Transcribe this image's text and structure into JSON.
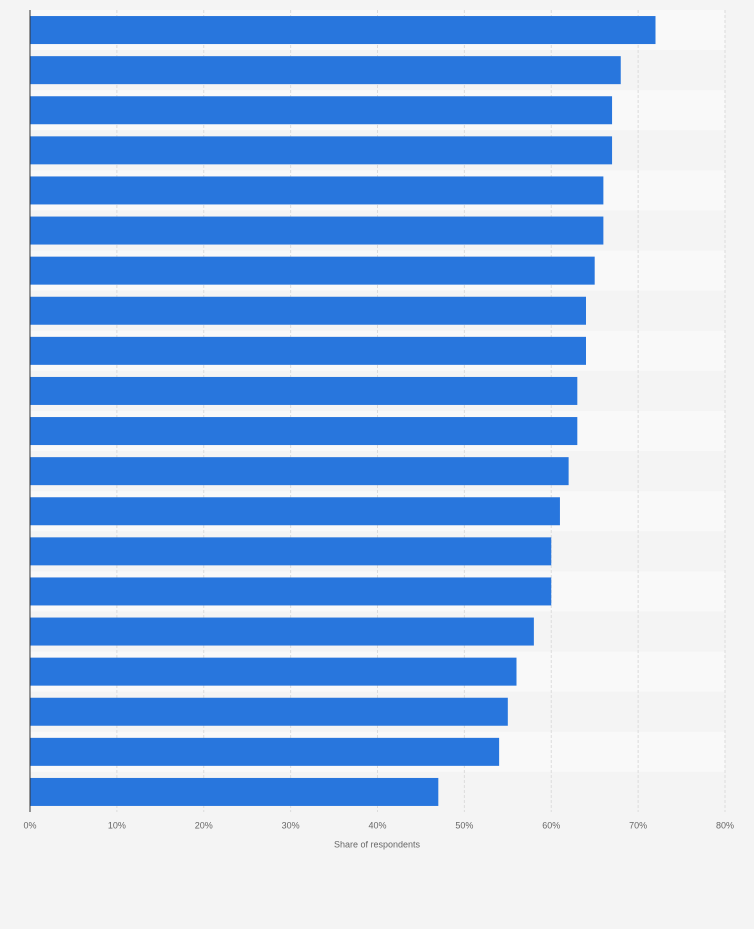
{
  "chart_data": {
    "type": "bar",
    "orientation": "horizontal",
    "x_label": "Share of respondents",
    "categories": [
      null,
      null,
      null,
      null,
      null,
      null,
      null,
      null,
      null,
      null,
      null,
      null,
      null,
      null,
      null,
      null,
      null,
      null,
      null,
      null
    ],
    "values": [
      72,
      68,
      67,
      67,
      66,
      66,
      65,
      64,
      64,
      63,
      63,
      62,
      61,
      60,
      60,
      58,
      56,
      55,
      54,
      47
    ],
    "color": "#2876dd",
    "xlim": [
      0,
      80
    ],
    "xticks": [
      {
        "value": 0,
        "label": "0%"
      },
      {
        "value": 10,
        "label": "10%"
      },
      {
        "value": 20,
        "label": "20%"
      },
      {
        "value": 30,
        "label": "30%"
      },
      {
        "value": 40,
        "label": "40%"
      },
      {
        "value": 50,
        "label": "50%"
      },
      {
        "value": 60,
        "label": "60%"
      },
      {
        "value": 70,
        "label": "70%"
      },
      {
        "value": 80,
        "label": "80%"
      }
    ],
    "grid": true
  }
}
